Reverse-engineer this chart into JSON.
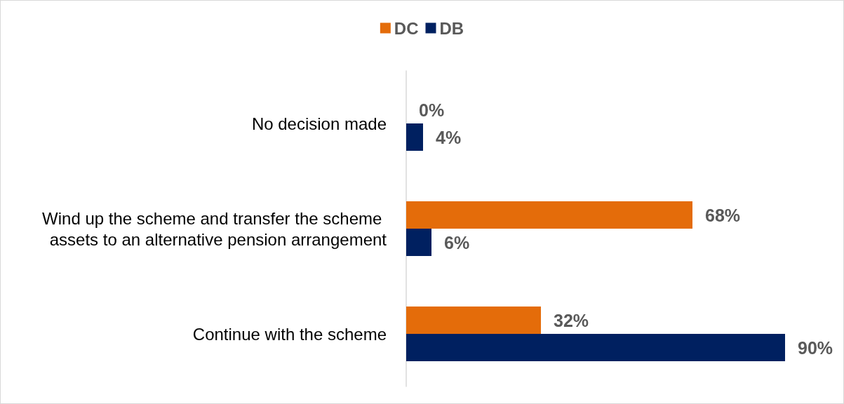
{
  "chart_data": {
    "type": "bar",
    "orientation": "horizontal",
    "categories": [
      "No decision made",
      "Wind up the scheme and transfer the scheme assets to an alternative pension arrangement",
      "Continue with the scheme"
    ],
    "series": [
      {
        "name": "DC",
        "color": "#e46c0a",
        "values": [
          0,
          68,
          32
        ],
        "value_labels": [
          "0%",
          "68%",
          "32%"
        ]
      },
      {
        "name": "DB",
        "color": "#002060",
        "values": [
          4,
          6,
          90
        ],
        "value_labels": [
          "4%",
          "6%",
          "90%"
        ]
      }
    ],
    "legend": "top"
  }
}
